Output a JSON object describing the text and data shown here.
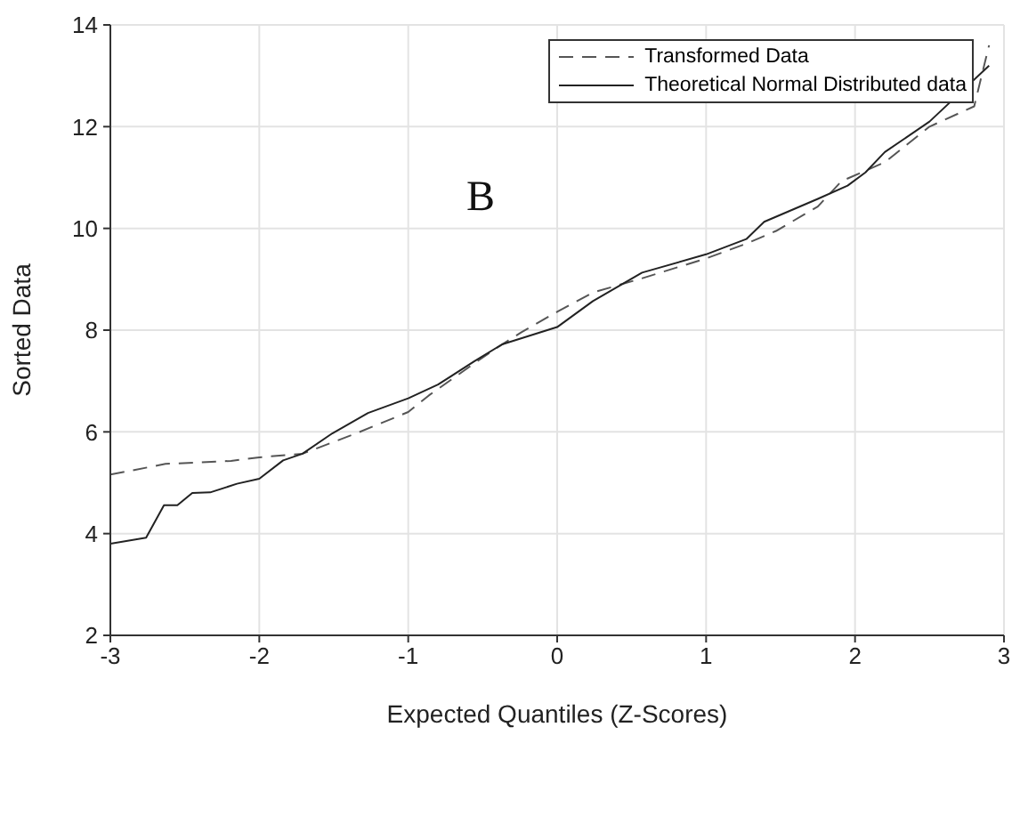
{
  "chart_data": {
    "type": "line",
    "xlabel": "Expected Quantiles (Z-Scores)",
    "ylabel": "Sorted Data",
    "annotations": [
      "B"
    ],
    "xlim": [
      -3,
      3
    ],
    "xticks": [
      -3,
      -2,
      -1,
      0,
      1,
      2,
      3
    ],
    "ylim": [
      2,
      14
    ],
    "yticks": [
      2,
      4,
      6,
      8,
      10,
      12,
      14
    ],
    "grid": true,
    "legend": "top right",
    "series": [
      {
        "name": "Transformed Data",
        "color": "#555555",
        "line_style": "dashed",
        "x": [
          -3,
          -2.63,
          -2.19,
          -2.0,
          -1.71,
          -1.35,
          -1.0,
          -0.86,
          -0.55,
          -0.39,
          -0.24,
          0,
          0.24,
          0.56,
          1.0,
          1.27,
          1.47,
          1.75,
          1.91,
          2.2,
          2.5,
          2.8,
          2.9
        ],
        "values": [
          5.16,
          5.37,
          5.43,
          5.5,
          5.57,
          5.97,
          6.39,
          6.72,
          7.36,
          7.68,
          7.96,
          8.36,
          8.74,
          9.01,
          9.41,
          9.7,
          9.95,
          10.43,
          10.93,
          11.3,
          12.0,
          12.4,
          13.6
        ]
      },
      {
        "name": "Theoretical Normal Distributed data",
        "color": "#222222",
        "line_style": "solid",
        "x": [
          -3,
          -2.76,
          -2.64,
          -2.55,
          -2.45,
          -2.33,
          -2.15,
          -2.0,
          -1.84,
          -1.71,
          -1.51,
          -1.27,
          -1.0,
          -0.8,
          -0.56,
          -0.37,
          0,
          0.24,
          0.57,
          1.0,
          1.27,
          1.39,
          1.75,
          1.95,
          2.07,
          2.2,
          2.5,
          2.9
        ],
        "values": [
          3.8,
          3.92,
          4.56,
          4.56,
          4.8,
          4.81,
          4.98,
          5.08,
          5.44,
          5.57,
          5.97,
          6.37,
          6.66,
          6.93,
          7.38,
          7.72,
          8.06,
          8.57,
          9.13,
          9.49,
          9.79,
          10.13,
          10.58,
          10.84,
          11.1,
          11.5,
          12.1,
          13.2
        ]
      }
    ]
  }
}
